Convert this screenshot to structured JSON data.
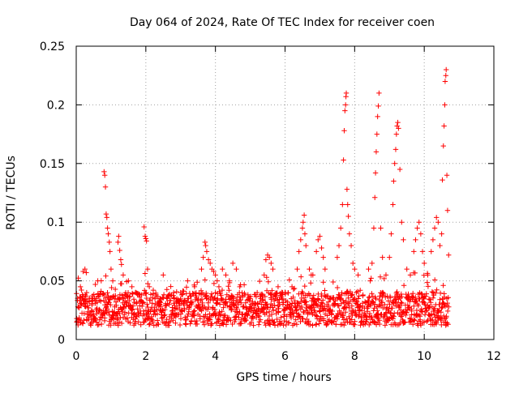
{
  "chart_data": {
    "type": "scatter",
    "title": "Day 064 of 2024, Rate Of TEC Index for receiver coen",
    "xlabel": "GPS time / hours",
    "ylabel": "ROTI / TECUs",
    "xlim": [
      0,
      12
    ],
    "ylim": [
      0,
      0.25
    ],
    "xticks": [
      0,
      2,
      4,
      6,
      8,
      10,
      12
    ],
    "xtick_labels": [
      "0",
      "2",
      "4",
      "6",
      "8",
      "10",
      "12"
    ],
    "yticks": [
      0,
      0.05,
      0.1,
      0.15,
      0.2,
      0.25
    ],
    "ytick_labels": [
      "0",
      "0.05",
      "0.1",
      "0.15",
      "0.2",
      "0.25"
    ],
    "grid": true,
    "marker": "plus",
    "color": "#ff0000",
    "data_x_range": [
      0,
      10.7
    ],
    "series": [
      {
        "name": "ROTI",
        "points": [
          [
            0.08,
            0.027
          ],
          [
            0.12,
            0.045
          ],
          [
            0.2,
            0.058
          ],
          [
            0.25,
            0.06
          ],
          [
            0.3,
            0.04
          ],
          [
            0.45,
            0.035
          ],
          [
            0.55,
            0.047
          ],
          [
            0.62,
            0.05
          ],
          [
            0.8,
            0.143
          ],
          [
            0.82,
            0.14
          ],
          [
            0.84,
            0.13
          ],
          [
            0.86,
            0.107
          ],
          [
            0.88,
            0.104
          ],
          [
            0.9,
            0.095
          ],
          [
            0.92,
            0.09
          ],
          [
            0.95,
            0.083
          ],
          [
            0.97,
            0.075
          ],
          [
            1.0,
            0.06
          ],
          [
            1.05,
            0.05
          ],
          [
            1.2,
            0.083
          ],
          [
            1.22,
            0.088
          ],
          [
            1.25,
            0.076
          ],
          [
            1.28,
            0.068
          ],
          [
            1.3,
            0.064
          ],
          [
            1.35,
            0.055
          ],
          [
            1.5,
            0.05
          ],
          [
            1.6,
            0.045
          ],
          [
            1.7,
            0.04
          ],
          [
            1.95,
            0.096
          ],
          [
            1.98,
            0.088
          ],
          [
            2.0,
            0.086
          ],
          [
            2.02,
            0.084
          ],
          [
            2.05,
            0.06
          ],
          [
            2.1,
            0.045
          ],
          [
            2.4,
            0.03
          ],
          [
            2.5,
            0.055
          ],
          [
            2.6,
            0.035
          ],
          [
            2.8,
            0.04
          ],
          [
            3.0,
            0.04
          ],
          [
            3.2,
            0.05
          ],
          [
            3.4,
            0.045
          ],
          [
            3.6,
            0.06
          ],
          [
            3.65,
            0.07
          ],
          [
            3.7,
            0.083
          ],
          [
            3.72,
            0.08
          ],
          [
            3.75,
            0.075
          ],
          [
            3.8,
            0.068
          ],
          [
            3.85,
            0.065
          ],
          [
            3.9,
            0.06
          ],
          [
            3.95,
            0.058
          ],
          [
            4.0,
            0.055
          ],
          [
            4.05,
            0.05
          ],
          [
            4.1,
            0.045
          ],
          [
            4.2,
            0.06
          ],
          [
            4.3,
            0.055
          ],
          [
            4.4,
            0.05
          ],
          [
            4.5,
            0.065
          ],
          [
            4.6,
            0.06
          ],
          [
            4.7,
            0.045
          ],
          [
            4.85,
            0.038
          ],
          [
            5.0,
            0.035
          ],
          [
            5.2,
            0.04
          ],
          [
            5.4,
            0.055
          ],
          [
            5.45,
            0.068
          ],
          [
            5.5,
            0.072
          ],
          [
            5.55,
            0.07
          ],
          [
            5.6,
            0.065
          ],
          [
            5.65,
            0.06
          ],
          [
            5.8,
            0.045
          ],
          [
            6.0,
            0.04
          ],
          [
            6.2,
            0.045
          ],
          [
            6.35,
            0.06
          ],
          [
            6.4,
            0.075
          ],
          [
            6.45,
            0.085
          ],
          [
            6.5,
            0.095
          ],
          [
            6.52,
            0.1
          ],
          [
            6.55,
            0.106
          ],
          [
            6.57,
            0.09
          ],
          [
            6.6,
            0.08
          ],
          [
            6.7,
            0.06
          ],
          [
            6.8,
            0.055
          ],
          [
            6.9,
            0.075
          ],
          [
            6.95,
            0.085
          ],
          [
            7.0,
            0.088
          ],
          [
            7.05,
            0.078
          ],
          [
            7.1,
            0.07
          ],
          [
            7.15,
            0.06
          ],
          [
            7.5,
            0.07
          ],
          [
            7.55,
            0.08
          ],
          [
            7.6,
            0.095
          ],
          [
            7.65,
            0.115
          ],
          [
            7.68,
            0.153
          ],
          [
            7.7,
            0.178
          ],
          [
            7.72,
            0.195
          ],
          [
            7.74,
            0.2
          ],
          [
            7.75,
            0.207
          ],
          [
            7.76,
            0.21
          ],
          [
            7.78,
            0.128
          ],
          [
            7.8,
            0.115
          ],
          [
            7.82,
            0.105
          ],
          [
            7.85,
            0.09
          ],
          [
            7.9,
            0.08
          ],
          [
            7.95,
            0.065
          ],
          [
            8.0,
            0.06
          ],
          [
            8.1,
            0.055
          ],
          [
            8.4,
            0.06
          ],
          [
            8.5,
            0.065
          ],
          [
            8.55,
            0.095
          ],
          [
            8.58,
            0.121
          ],
          [
            8.6,
            0.142
          ],
          [
            8.62,
            0.16
          ],
          [
            8.64,
            0.175
          ],
          [
            8.66,
            0.19
          ],
          [
            8.68,
            0.199
          ],
          [
            8.7,
            0.21
          ],
          [
            8.75,
            0.095
          ],
          [
            8.8,
            0.07
          ],
          [
            8.9,
            0.055
          ],
          [
            9.0,
            0.07
          ],
          [
            9.05,
            0.09
          ],
          [
            9.1,
            0.115
          ],
          [
            9.12,
            0.135
          ],
          [
            9.15,
            0.15
          ],
          [
            9.18,
            0.162
          ],
          [
            9.2,
            0.175
          ],
          [
            9.22,
            0.182
          ],
          [
            9.24,
            0.185
          ],
          [
            9.26,
            0.18
          ],
          [
            9.3,
            0.145
          ],
          [
            9.35,
            0.1
          ],
          [
            9.4,
            0.085
          ],
          [
            9.5,
            0.06
          ],
          [
            9.6,
            0.055
          ],
          [
            9.7,
            0.075
          ],
          [
            9.75,
            0.085
          ],
          [
            9.8,
            0.095
          ],
          [
            9.85,
            0.1
          ],
          [
            9.9,
            0.09
          ],
          [
            9.95,
            0.075
          ],
          [
            10.0,
            0.065
          ],
          [
            10.1,
            0.055
          ],
          [
            10.2,
            0.075
          ],
          [
            10.25,
            0.085
          ],
          [
            10.3,
            0.095
          ],
          [
            10.35,
            0.104
          ],
          [
            10.4,
            0.1
          ],
          [
            10.45,
            0.08
          ],
          [
            10.5,
            0.09
          ],
          [
            10.52,
            0.136
          ],
          [
            10.55,
            0.165
          ],
          [
            10.57,
            0.182
          ],
          [
            10.59,
            0.2
          ],
          [
            10.6,
            0.22
          ],
          [
            10.62,
            0.225
          ],
          [
            10.63,
            0.23
          ],
          [
            10.65,
            0.14
          ],
          [
            10.67,
            0.11
          ],
          [
            10.7,
            0.072
          ]
        ]
      }
    ]
  }
}
